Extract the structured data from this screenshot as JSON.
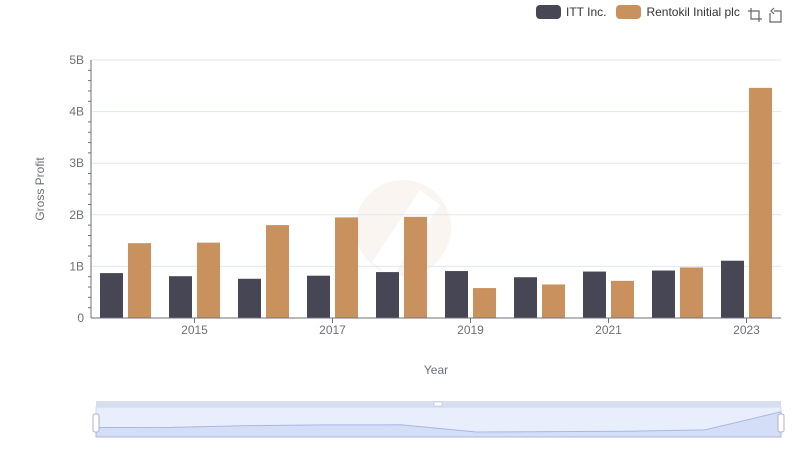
{
  "legend": {
    "items": [
      {
        "label": "ITT Inc.",
        "color": "#474655"
      },
      {
        "label": "Rentokil Initial plc",
        "color": "#c8915e"
      }
    ]
  },
  "toolbox": {
    "icons": [
      "zoom-icon",
      "restore-icon"
    ]
  },
  "chart_data": {
    "type": "bar",
    "xlabel": "Year",
    "ylabel": "Gross Profit",
    "categories": [
      "2014",
      "2015",
      "2016",
      "2017",
      "2018",
      "2019",
      "2020",
      "2021",
      "2022",
      "2023"
    ],
    "x_tick_labels": [
      "2015",
      "2017",
      "2019",
      "2021",
      "2023"
    ],
    "y_tick_labels": [
      "0",
      "1B",
      "2B",
      "3B",
      "4B",
      "5B"
    ],
    "ylim": [
      0,
      5000000000
    ],
    "grid": true,
    "legend_position": "top-right",
    "series": [
      {
        "name": "ITT Inc.",
        "color": "#474655",
        "values": [
          870000000,
          810000000,
          760000000,
          820000000,
          890000000,
          910000000,
          790000000,
          900000000,
          920000000,
          1110000000
        ]
      },
      {
        "name": "Rentokil Initial plc",
        "color": "#c8915e",
        "values": [
          1450000000,
          1460000000,
          1800000000,
          1950000000,
          1960000000,
          580000000,
          650000000,
          720000000,
          980000000,
          4460000000
        ]
      }
    ]
  }
}
